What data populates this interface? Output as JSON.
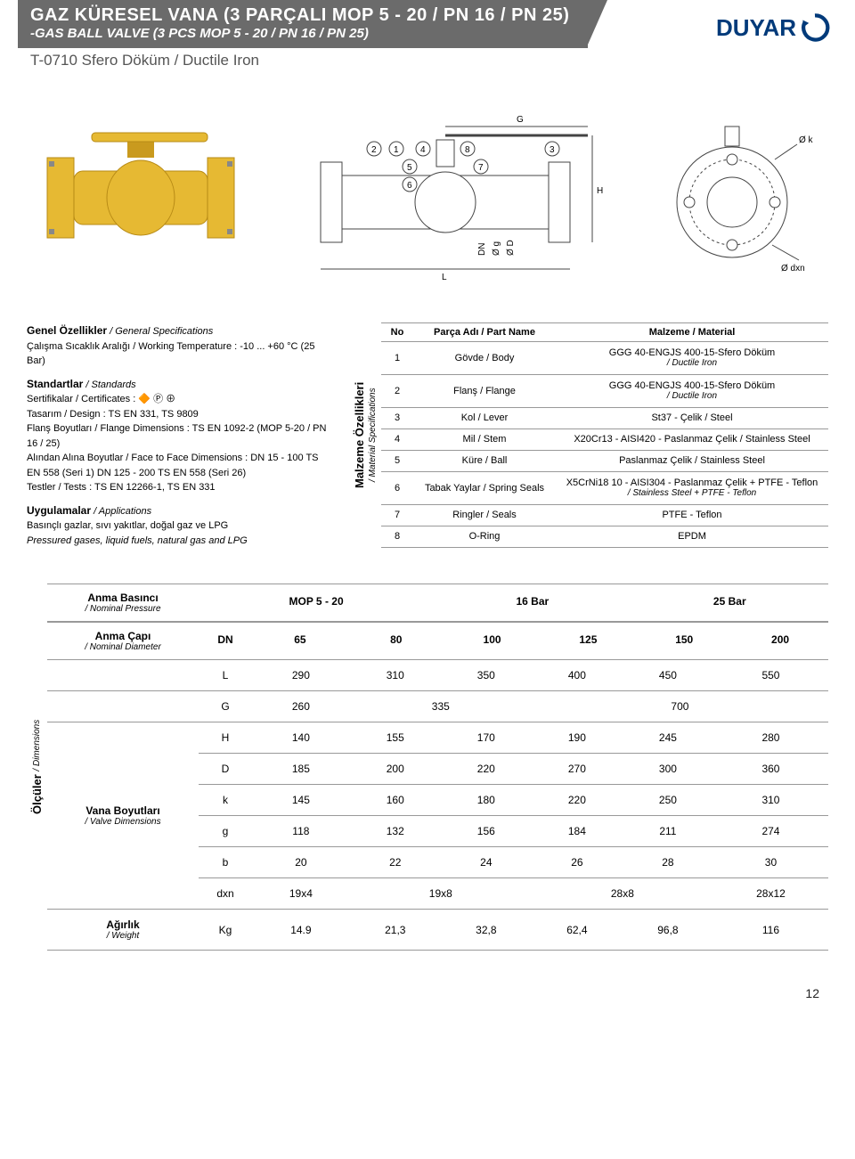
{
  "header": {
    "title": "GAZ KÜRESEL VANA (3 PARÇALI MOP 5 - 20 / PN 16 / PN 25)",
    "subtitle": "-GAS BALL VALVE (3 PCS MOP 5 - 20 / PN 16 / PN 25)",
    "line3": "T-0710 Sfero Döküm / Ductile Iron",
    "logo_text": "DUYAR",
    "logo_color": "#003a7a",
    "band_color": "#6b6b6b"
  },
  "drawing": {
    "callouts": [
      "1",
      "2",
      "3",
      "4",
      "5",
      "6",
      "7",
      "8"
    ],
    "dims": [
      "G",
      "L",
      "H",
      "DN",
      "Ø g",
      "Ø D",
      "Ø k",
      "Ø dxn"
    ],
    "valve_colors": {
      "body": "#e6b933",
      "shadow": "#c99a1e",
      "bolt": "#888"
    }
  },
  "general": {
    "heading": "Genel Özellikler",
    "heading_en": "/ General Specifications",
    "temp_label": "Çalışma Sıcaklık Aralığı / Working Temperature :",
    "temp_value": "-10 ... +60 °C (25 Bar)",
    "standards_h": "Standartlar",
    "standards_h_en": "/ Standards",
    "cert_label": "Sertifikalar / Certificates :",
    "design": "Tasarım / Design : TS EN 331, TS 9809",
    "flange": "Flanş Boyutları / Flange Dimensions : TS EN 1092-2 (MOP 5-20 / PN 16 / 25)",
    "face": "Alından Alına Boyutlar / Face to Face Dimensions : DN 15 - 100 TS EN 558 (Seri 1) DN 125 - 200 TS EN 558 (Seri 26)",
    "tests": "Testler / Tests : TS EN 12266-1, TS EN 331",
    "apps_h": "Uygulamalar",
    "apps_h_en": "/ Applications",
    "apps1": "Basınçlı gazlar, sıvı yakıtlar, doğal gaz ve LPG",
    "apps2": "Pressured gases, liquid fuels, natural gas and LPG"
  },
  "materials": {
    "vlabel": "Malzeme Özellikleri",
    "vlabel_en": "/ Material Specifications",
    "head_no": "No",
    "head_part": "Parça Adı / Part Name",
    "head_mat": "Malzeme / Material",
    "rows": [
      {
        "no": "1",
        "part": "Gövde / Body",
        "mat": "GGG 40-ENGJS 400-15-Sfero Döküm",
        "mat_sub": "/ Ductile Iron"
      },
      {
        "no": "2",
        "part": "Flanş / Flange",
        "mat": "GGG 40-ENGJS 400-15-Sfero Döküm",
        "mat_sub": "/ Ductile Iron"
      },
      {
        "no": "3",
        "part": "Kol / Lever",
        "mat": "St37 - Çelik / Steel",
        "mat_sub": ""
      },
      {
        "no": "4",
        "part": "Mil / Stem",
        "mat": "X20Cr13 - AISI420 - Paslanmaz Çelik / Stainless Steel",
        "mat_sub": ""
      },
      {
        "no": "5",
        "part": "Küre / Ball",
        "mat": "Paslanmaz Çelik / Stainless Steel",
        "mat_sub": ""
      },
      {
        "no": "6",
        "part": "Tabak Yaylar / Spring Seals",
        "mat": "X5CrNi18 10 - AISI304 - Paslanmaz Çelik + PTFE - Teflon",
        "mat_sub": "/ Stainless Steel + PTFE - Teflon"
      },
      {
        "no": "7",
        "part": "Ringler / Seals",
        "mat": "PTFE - Teflon",
        "mat_sub": ""
      },
      {
        "no": "8",
        "part": "O-Ring",
        "mat": "EPDM",
        "mat_sub": ""
      }
    ]
  },
  "dimensions": {
    "vlabel": "Ölçüler",
    "vlabel_en": "/ Dimensions",
    "pressure_label": "Anma Basıncı",
    "pressure_label_en": "/ Nominal Pressure",
    "pressure_values": [
      "MOP 5 - 20",
      "16 Bar",
      "25 Bar"
    ],
    "diameter_label": "Anma Çapı",
    "diameter_label_en": "/ Nominal Diameter",
    "diameter_param": "DN",
    "diameter_values": [
      "65",
      "80",
      "100",
      "125",
      "150",
      "200"
    ],
    "valve_dim_label": "Vana Boyutları",
    "valve_dim_label_en": "/ Valve Dimensions",
    "rows": [
      {
        "p": "L",
        "v": [
          "290",
          "310",
          "350",
          "400",
          "450",
          "550"
        ]
      },
      {
        "p": "G",
        "v": [
          "260",
          "",
          "335",
          "",
          "700",
          ""
        ],
        "span": [
          1,
          2,
          1,
          2,
          1,
          1
        ],
        "layout": "g"
      },
      {
        "p": "H",
        "v": [
          "140",
          "155",
          "170",
          "190",
          "245",
          "280"
        ]
      },
      {
        "p": "D",
        "v": [
          "185",
          "200",
          "220",
          "270",
          "300",
          "360"
        ]
      },
      {
        "p": "k",
        "v": [
          "145",
          "160",
          "180",
          "220",
          "250",
          "310"
        ]
      },
      {
        "p": "g",
        "v": [
          "118",
          "132",
          "156",
          "184",
          "211",
          "274"
        ]
      },
      {
        "p": "b",
        "v": [
          "20",
          "22",
          "24",
          "26",
          "28",
          "30"
        ]
      },
      {
        "p": "dxn",
        "v": [
          "19x4",
          "19x8",
          "",
          "28x8",
          "",
          "28x12"
        ],
        "layout": "dxn"
      }
    ],
    "weight_label": "Ağırlık",
    "weight_label_en": "/ Weight",
    "weight_param": "Kg",
    "weight_values": [
      "14.9",
      "21,3",
      "32,8",
      "62,4",
      "96,8",
      "116"
    ]
  },
  "page_number": "12"
}
